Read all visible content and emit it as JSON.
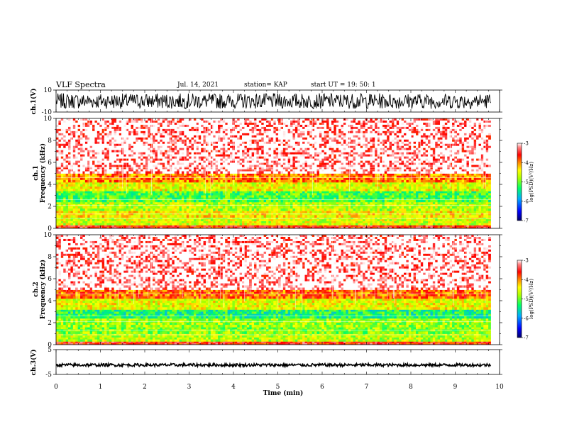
{
  "header": {
    "title": "VLF Spectra",
    "date": "Jul. 14, 2021",
    "station": "station= KAP",
    "start": "start UT =  19: 50: 1"
  },
  "chart_data": [
    {
      "type": "line",
      "name": "waveform-ch1",
      "ylabel": "ch.1(V)",
      "ylim": [
        -10,
        10
      ],
      "y_ticks": [
        "10",
        "-10"
      ],
      "xlim": [
        0,
        10
      ],
      "trace": {
        "center": 0,
        "amplitude": 7,
        "x_end": 9.8
      }
    },
    {
      "type": "heatmap",
      "name": "spectrogram-ch1",
      "ylabel": "ch.1\nFrequency (kHz)",
      "ylim": [
        0,
        10
      ],
      "y_ticks": [
        "0",
        "2",
        "4",
        "6",
        "8",
        "10"
      ],
      "xlim": [
        0,
        10
      ],
      "x_end": 9.8,
      "bands": [
        {
          "from": 0.0,
          "to": 0.3,
          "level": -3.6
        },
        {
          "from": 0.3,
          "to": 1.0,
          "level": -4.6
        },
        {
          "from": 1.0,
          "to": 1.6,
          "level": -4.4
        },
        {
          "from": 1.6,
          "to": 2.4,
          "level": -4.7
        },
        {
          "from": 2.4,
          "to": 3.4,
          "level": -5.1
        },
        {
          "from": 3.4,
          "to": 4.2,
          "level": -4.5
        },
        {
          "from": 4.2,
          "to": 5.0,
          "level": -4.0
        },
        {
          "from": 5.0,
          "to": 10.0,
          "level": -3.3
        }
      ],
      "colorbar": {
        "label": "log(PSD)(V²/Hz)",
        "min": -7,
        "max": -3,
        "ticks": [
          "-3",
          "-4",
          "-5",
          "-6",
          "-7"
        ]
      }
    },
    {
      "type": "heatmap",
      "name": "spectrogram-ch2",
      "ylabel": "ch.2\nFrequency (kHz)",
      "ylim": [
        0,
        10
      ],
      "y_ticks": [
        "0",
        "2",
        "4",
        "6",
        "8",
        "10"
      ],
      "xlim": [
        0,
        10
      ],
      "x_end": 9.8,
      "bands": [
        {
          "from": 0.0,
          "to": 0.3,
          "level": -3.6
        },
        {
          "from": 0.3,
          "to": 1.0,
          "level": -4.7
        },
        {
          "from": 1.0,
          "to": 1.6,
          "level": -4.9
        },
        {
          "from": 1.6,
          "to": 2.4,
          "level": -4.8
        },
        {
          "from": 2.4,
          "to": 3.2,
          "level": -5.3
        },
        {
          "from": 3.2,
          "to": 4.2,
          "level": -4.5
        },
        {
          "from": 4.2,
          "to": 5.0,
          "level": -3.9
        },
        {
          "from": 5.0,
          "to": 10.0,
          "level": -3.3
        }
      ],
      "colorbar": {
        "label": "log(PSD)(V²/Hz)",
        "min": -7,
        "max": -3,
        "ticks": [
          "-3",
          "-4",
          "-5",
          "-6",
          "-7"
        ]
      }
    },
    {
      "type": "line",
      "name": "waveform-ch3",
      "ylabel": "ch.3(V)",
      "ylim": [
        -5,
        5
      ],
      "y_ticks": [
        "5",
        "-5"
      ],
      "xlim": [
        0,
        10
      ],
      "xlabel": "Time (min)",
      "x_ticks": [
        "0",
        "1",
        "2",
        "3",
        "4",
        "5",
        "6",
        "7",
        "8",
        "9",
        "10"
      ],
      "trace": {
        "center": -1.2,
        "amplitude": 0.6,
        "x_end": 9.8
      }
    }
  ],
  "colors": {
    "trace": "#000000",
    "colormap": [
      "#0000aa",
      "#0044ff",
      "#00bbff",
      "#00ff66",
      "#99ff00",
      "#ffff00",
      "#ffaa00",
      "#ff3300",
      "#ff0000",
      "#ff9999",
      "#ffffff"
    ]
  }
}
